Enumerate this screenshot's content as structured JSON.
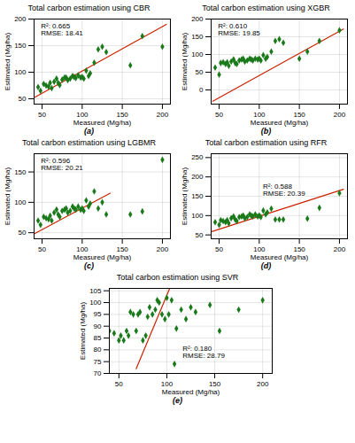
{
  "chart_data": [
    {
      "type": "scatter",
      "title": "Total carbon estimation using CBR",
      "xlabel": "Measured (Mg/ha)",
      "ylabel": "Estimated (Mg/ha)",
      "annotations": [
        "R²: 0.665\nRMSE: 18.41",
        "(a)"
      ],
      "xlim": [
        40,
        210
      ],
      "ylim": [
        40,
        200
      ],
      "xticks": [
        50,
        100,
        150,
        200
      ],
      "yticks": [
        50,
        100,
        150,
        200
      ],
      "grid": true,
      "series": [
        {
          "type": "scatter",
          "marker": "diamond",
          "color": "#1a7a1a",
          "x": [
            45,
            48,
            52,
            55,
            58,
            60,
            62,
            65,
            68,
            70,
            72,
            75,
            78,
            80,
            82,
            85,
            88,
            90,
            92,
            95,
            98,
            100,
            102,
            105,
            108,
            110,
            115,
            120,
            125,
            130,
            160,
            175,
            200
          ],
          "values": [
            72,
            65,
            78,
            75,
            73,
            80,
            70,
            82,
            88,
            80,
            76,
            86,
            90,
            90,
            85,
            88,
            93,
            91,
            89,
            94,
            90,
            91,
            88,
            103,
            93,
            98,
            118,
            143,
            148,
            138,
            113,
            168,
            148
          ]
        },
        {
          "type": "line",
          "color": "#cc2200",
          "x": [
            40,
            205
          ],
          "values": [
            52,
            190
          ]
        }
      ]
    },
    {
      "type": "scatter",
      "title": "Total carbon estimation using XGBR",
      "xlabel": "Measured (Mg/ha)",
      "ylabel": "Estimated (Mg/ha)",
      "annotations": [
        "R²: 0.610\nRMSE: 19.85",
        "(b)"
      ],
      "xlim": [
        40,
        210
      ],
      "ylim": [
        -40,
        200
      ],
      "xticks": [
        50,
        100,
        150,
        200
      ],
      "yticks": [
        0,
        50,
        100,
        150,
        200
      ],
      "grid": true,
      "series": [
        {
          "type": "scatter",
          "marker": "diamond",
          "color": "#1a7a1a",
          "x": [
            45,
            50,
            52,
            55,
            58,
            60,
            62,
            65,
            68,
            70,
            72,
            75,
            78,
            80,
            82,
            85,
            88,
            90,
            92,
            95,
            98,
            100,
            102,
            105,
            108,
            110,
            115,
            120,
            125,
            130,
            150,
            160,
            175,
            200
          ],
          "values": [
            63,
            43,
            76,
            78,
            73,
            78,
            68,
            80,
            86,
            76,
            73,
            83,
            86,
            88,
            80,
            83,
            88,
            86,
            83,
            88,
            86,
            88,
            83,
            98,
            88,
            93,
            108,
            138,
            143,
            133,
            88,
            108,
            138,
            168
          ]
        },
        {
          "type": "line",
          "color": "#cc2200",
          "x": [
            42,
            205
          ],
          "values": [
            -32,
            172
          ]
        }
      ]
    },
    {
      "type": "scatter",
      "title": "Total carbon estimation using LGBMR",
      "xlabel": "Measured (Mg/ha)",
      "ylabel": "Estimated (Mg/ha)",
      "annotations": [
        "R²: 0.596\nRMSE: 20.21",
        "(c)"
      ],
      "xlim": [
        40,
        210
      ],
      "ylim": [
        40,
        180
      ],
      "xticks": [
        50,
        100,
        150,
        200
      ],
      "yticks": [
        50,
        100,
        150
      ],
      "grid": true,
      "series": [
        {
          "type": "scatter",
          "marker": "diamond",
          "color": "#1a7a1a",
          "x": [
            45,
            48,
            52,
            55,
            58,
            60,
            62,
            65,
            68,
            70,
            72,
            75,
            78,
            80,
            82,
            85,
            88,
            90,
            92,
            95,
            98,
            100,
            102,
            105,
            108,
            110,
            115,
            120,
            125,
            130,
            160,
            175,
            200
          ],
          "values": [
            70,
            63,
            76,
            74,
            72,
            78,
            70,
            83,
            88,
            80,
            76,
            86,
            88,
            90,
            83,
            86,
            93,
            90,
            88,
            93,
            88,
            90,
            86,
            103,
            93,
            98,
            118,
            90,
            100,
            80,
            80,
            85,
            170
          ]
        },
        {
          "type": "line",
          "color": "#cc2200",
          "x": [
            40,
            135
          ],
          "values": [
            48,
            115
          ]
        }
      ]
    },
    {
      "type": "scatter",
      "title": "Total carbon estimation using RFR",
      "xlabel": "Measured (Mg/ha)",
      "ylabel": "Estimated (Mg/ha)",
      "annotations": [
        "R²: 0.588\nRMSE: 20.39",
        "(d)"
      ],
      "xlim": [
        40,
        210
      ],
      "ylim": [
        40,
        260
      ],
      "xticks": [
        50,
        100,
        150,
        200
      ],
      "yticks": [
        50,
        100,
        150,
        200,
        250
      ],
      "grid": true,
      "series": [
        {
          "type": "scatter",
          "marker": "diamond",
          "color": "#1a7a1a",
          "x": [
            45,
            50,
            52,
            55,
            58,
            60,
            62,
            65,
            68,
            70,
            72,
            75,
            78,
            80,
            82,
            85,
            88,
            90,
            92,
            95,
            98,
            100,
            102,
            105,
            108,
            110,
            115,
            120,
            125,
            130,
            160,
            175,
            200
          ],
          "values": [
            83,
            76,
            88,
            86,
            83,
            88,
            80,
            93,
            98,
            90,
            86,
            96,
            98,
            100,
            93,
            96,
            103,
            100,
            98,
            103,
            98,
            100,
            96,
            113,
            103,
            108,
            118,
            90,
            90,
            90,
            92,
            120,
            158
          ]
        },
        {
          "type": "line",
          "color": "#cc2200",
          "x": [
            40,
            205
          ],
          "values": [
            58,
            168
          ]
        }
      ]
    },
    {
      "type": "scatter",
      "title": "Total carbon estimation using SVR",
      "xlabel": "Measured (Mg/ha)",
      "ylabel": "Estimated (Mg/ha)",
      "annotations": [
        "R²: 0.180\nRMSE: 28.79",
        "(e)"
      ],
      "xlim": [
        40,
        210
      ],
      "ylim": [
        70,
        106
      ],
      "xticks": [
        50,
        100,
        150,
        200
      ],
      "yticks": [
        70,
        75,
        80,
        85,
        90,
        95,
        100,
        105
      ],
      "grid": true,
      "series": [
        {
          "type": "scatter",
          "marker": "diamond",
          "color": "#1a7a1a",
          "x": [
            40,
            45,
            50,
            52,
            55,
            58,
            60,
            62,
            65,
            68,
            70,
            72,
            75,
            78,
            80,
            82,
            85,
            88,
            90,
            92,
            95,
            98,
            100,
            102,
            105,
            108,
            110,
            115,
            120,
            125,
            130,
            145,
            155,
            175,
            200
          ],
          "values": [
            88,
            87,
            84,
            86,
            84,
            88,
            86,
            96,
            95,
            88,
            95,
            96,
            84,
            86,
            94,
            98,
            95,
            97,
            101,
            100,
            95,
            93,
            102,
            95,
            101,
            74,
            89,
            97,
            93,
            98,
            96,
            99,
            88,
            97,
            101
          ]
        },
        {
          "type": "line",
          "color": "#cc2200",
          "x": [
            68,
            103
          ],
          "values": [
            72,
            106
          ]
        }
      ]
    }
  ]
}
